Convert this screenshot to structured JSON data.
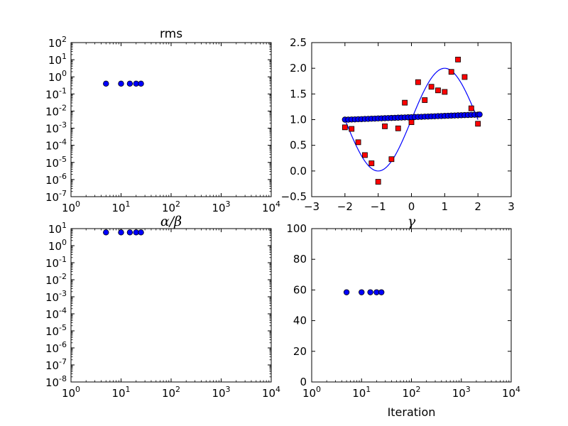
{
  "chart_data": [
    {
      "id": "rms",
      "type": "scatter",
      "title": "rms",
      "xlabel": "",
      "ylabel": "",
      "x_scale": "log",
      "y_scale": "log",
      "xlim": [
        1,
        10000
      ],
      "ylim": [
        1e-07,
        100
      ],
      "x_ticks": [
        {
          "base": "10",
          "exp": "0",
          "v": 1
        },
        {
          "base": "10",
          "exp": "1",
          "v": 10
        },
        {
          "base": "10",
          "exp": "2",
          "v": 100
        },
        {
          "base": "10",
          "exp": "3",
          "v": 1000
        },
        {
          "base": "10",
          "exp": "4",
          "v": 10000
        }
      ],
      "y_ticks": [
        {
          "base": "10",
          "exp": "-7",
          "v": 1e-07
        },
        {
          "base": "10",
          "exp": "-6",
          "v": 1e-06
        },
        {
          "base": "10",
          "exp": "-5",
          "v": 1e-05
        },
        {
          "base": "10",
          "exp": "-4",
          "v": 0.0001
        },
        {
          "base": "10",
          "exp": "-3",
          "v": 0.001
        },
        {
          "base": "10",
          "exp": "-2",
          "v": 0.01
        },
        {
          "base": "10",
          "exp": "-1",
          "v": 0.1
        },
        {
          "base": "10",
          "exp": "0",
          "v": 1
        },
        {
          "base": "10",
          "exp": "1",
          "v": 10
        },
        {
          "base": "10",
          "exp": "2",
          "v": 100
        }
      ],
      "marker_color": "#0000ff",
      "series": [
        {
          "x": [
            5,
            10,
            15,
            20,
            25
          ],
          "y": [
            0.4,
            0.4,
            0.4,
            0.4,
            0.4
          ]
        }
      ]
    },
    {
      "id": "fit",
      "type": "scatter",
      "title": "",
      "xlabel": "",
      "ylabel": "",
      "x_scale": "linear",
      "y_scale": "linear",
      "xlim": [
        -3,
        3
      ],
      "ylim": [
        -0.5,
        2.5
      ],
      "x_ticks": [
        {
          "label": "−3",
          "v": -3
        },
        {
          "label": "−2",
          "v": -2
        },
        {
          "label": "−1",
          "v": -1
        },
        {
          "label": "0",
          "v": 0
        },
        {
          "label": "1",
          "v": 1
        },
        {
          "label": "2",
          "v": 2
        },
        {
          "label": "3",
          "v": 3
        }
      ],
      "y_ticks": [
        {
          "label": "−0.5",
          "v": -0.5
        },
        {
          "label": "0.0",
          "v": 0
        },
        {
          "label": "0.5",
          "v": 0.5
        },
        {
          "label": "1.0",
          "v": 1
        },
        {
          "label": "1.5",
          "v": 1.5
        },
        {
          "label": "2.0",
          "v": 2
        },
        {
          "label": "2.5",
          "v": 2.5
        }
      ],
      "curve": {
        "type": "line",
        "color": "#0000ff",
        "formula": "1 + sin(pi*x/2)",
        "x_range": [
          -2,
          2
        ]
      },
      "series": [
        {
          "marker": "square",
          "color": "#ff0000",
          "x": [
            -2.0,
            -1.8,
            -1.6,
            -1.4,
            -1.2,
            -1.0,
            -0.8,
            -0.6,
            -0.4,
            -0.2,
            0.0,
            0.2,
            0.4,
            0.6,
            0.8,
            1.0,
            1.2,
            1.4,
            1.6,
            1.8,
            2.0
          ],
          "y": [
            0.85,
            0.82,
            0.56,
            0.31,
            0.15,
            -0.21,
            0.87,
            0.23,
            0.83,
            1.33,
            0.95,
            1.73,
            1.38,
            1.64,
            1.57,
            1.54,
            1.93,
            2.17,
            1.83,
            1.22,
            0.92
          ]
        },
        {
          "marker": "circle",
          "color": "#0000ff",
          "x": [
            -2.0,
            -1.9,
            -1.8,
            -1.7,
            -1.6,
            -1.5,
            -1.4,
            -1.3,
            -1.2,
            -1.1,
            -1.0,
            -0.9,
            -0.8,
            -0.7,
            -0.6,
            -0.5,
            -0.4,
            -0.3,
            -0.2,
            -0.1,
            0.0,
            0.1,
            0.2,
            0.3,
            0.4,
            0.5,
            0.6,
            0.7,
            0.8,
            0.9,
            1.0,
            1.1,
            1.2,
            1.3,
            1.4,
            1.5,
            1.6,
            1.7,
            1.8,
            1.9,
            2.0,
            2.05
          ],
          "y": [
            1.0,
            1.0,
            1.003,
            1.005,
            1.008,
            1.01,
            1.013,
            1.015,
            1.018,
            1.02,
            1.023,
            1.025,
            1.028,
            1.03,
            1.033,
            1.035,
            1.038,
            1.04,
            1.043,
            1.045,
            1.048,
            1.05,
            1.053,
            1.055,
            1.058,
            1.06,
            1.063,
            1.065,
            1.068,
            1.07,
            1.073,
            1.075,
            1.078,
            1.08,
            1.083,
            1.085,
            1.088,
            1.09,
            1.093,
            1.095,
            1.098,
            1.1
          ]
        }
      ]
    },
    {
      "id": "alpha-beta",
      "type": "scatter",
      "title": "α/β",
      "xlabel": "",
      "ylabel": "",
      "x_scale": "log",
      "y_scale": "log",
      "xlim": [
        1,
        10000
      ],
      "ylim": [
        1e-08,
        10
      ],
      "x_ticks": [
        {
          "base": "10",
          "exp": "0",
          "v": 1
        },
        {
          "base": "10",
          "exp": "1",
          "v": 10
        },
        {
          "base": "10",
          "exp": "2",
          "v": 100
        },
        {
          "base": "10",
          "exp": "3",
          "v": 1000
        },
        {
          "base": "10",
          "exp": "4",
          "v": 10000
        }
      ],
      "y_ticks": [
        {
          "base": "10",
          "exp": "-8",
          "v": 1e-08
        },
        {
          "base": "10",
          "exp": "-7",
          "v": 1e-07
        },
        {
          "base": "10",
          "exp": "-6",
          "v": 1e-06
        },
        {
          "base": "10",
          "exp": "-5",
          "v": 1e-05
        },
        {
          "base": "10",
          "exp": "-4",
          "v": 0.0001
        },
        {
          "base": "10",
          "exp": "-3",
          "v": 0.001
        },
        {
          "base": "10",
          "exp": "-2",
          "v": 0.01
        },
        {
          "base": "10",
          "exp": "-1",
          "v": 0.1
        },
        {
          "base": "10",
          "exp": "0",
          "v": 1
        },
        {
          "base": "10",
          "exp": "1",
          "v": 10
        }
      ],
      "marker_color": "#0000ff",
      "series": [
        {
          "x": [
            5,
            10,
            15,
            20,
            25
          ],
          "y": [
            6,
            6,
            6,
            6,
            6
          ]
        }
      ]
    },
    {
      "id": "gamma",
      "type": "scatter",
      "title": "γ",
      "xlabel": "Iteration",
      "ylabel": "",
      "x_scale": "log",
      "y_scale": "linear",
      "xlim": [
        1,
        10000
      ],
      "ylim": [
        0,
        100
      ],
      "x_ticks": [
        {
          "base": "10",
          "exp": "0",
          "v": 1
        },
        {
          "base": "10",
          "exp": "1",
          "v": 10
        },
        {
          "base": "10",
          "exp": "2",
          "v": 100
        },
        {
          "base": "10",
          "exp": "3",
          "v": 1000
        },
        {
          "base": "10",
          "exp": "4",
          "v": 10000
        }
      ],
      "y_ticks": [
        {
          "label": "0",
          "v": 0
        },
        {
          "label": "20",
          "v": 20
        },
        {
          "label": "40",
          "v": 40
        },
        {
          "label": "60",
          "v": 60
        },
        {
          "label": "80",
          "v": 80
        },
        {
          "label": "100",
          "v": 100
        }
      ],
      "marker_color": "#0000ff",
      "series": [
        {
          "x": [
            5,
            10,
            15,
            20,
            25
          ],
          "y": [
            58.5,
            58.5,
            58.5,
            58.5,
            58.5
          ]
        }
      ]
    }
  ]
}
